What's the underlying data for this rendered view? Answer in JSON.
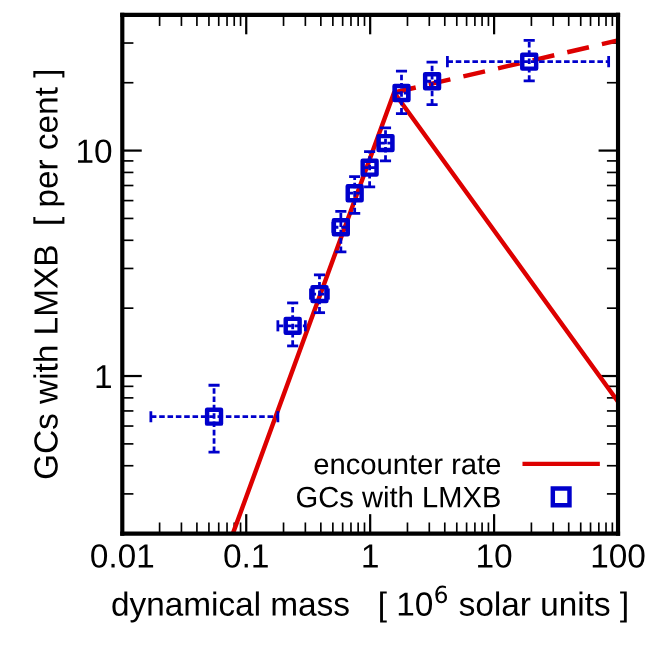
{
  "chart_data": {
    "type": "scatter",
    "xlabel": "dynamical mass   [ 10$^{6}$ solar units ]",
    "ylabel": "GCs with LMXB  [ per cent ]",
    "log": "xy",
    "xlim": [
      0.01,
      100
    ],
    "ylim": [
      0.2,
      40
    ],
    "xticks": [
      0.01,
      0.1,
      1,
      10,
      100
    ],
    "yticks": [
      1,
      10
    ],
    "legend": "bottom right",
    "grid": false,
    "series": [
      {
        "name": "encounter rate",
        "type": "line",
        "color": "#dd0000",
        "line_style": "solid",
        "marker": "none",
        "x": [
          0.078,
          1.56,
          100
        ],
        "values": [
          0.2,
          18.1,
          0.77
        ]
      },
      {
        "type": "line",
        "color": "#dd0000",
        "line_style": "dashed",
        "marker": "none",
        "x": [
          1.56,
          100
        ],
        "values": [
          18.1,
          30.8
        ]
      },
      {
        "name": "GCs with LMXB",
        "color": "#0000cc",
        "marker": "square",
        "x": [
          0.055,
          0.237,
          0.39,
          0.58,
          0.75,
          0.99,
          1.33,
          1.79,
          3.16,
          19.2
        ],
        "values": [
          0.66,
          1.67,
          2.31,
          4.57,
          6.47,
          8.4,
          10.8,
          18.0,
          20.3,
          24.8
        ],
        "errors": [
          [
            0.46,
            0.91
          ],
          [
            1.36,
            2.11
          ],
          [
            1.91,
            2.81
          ],
          [
            3.55,
            5.38
          ],
          [
            5.27,
            7.67
          ],
          [
            6.9,
            9.9
          ],
          [
            9.0,
            12.6
          ],
          [
            14.6,
            22.5
          ],
          [
            16.0,
            24.7
          ],
          [
            20.4,
            30.8
          ]
        ],
        "xerrors": [
          [
            0.017,
            0.18
          ],
          [
            0.18,
            0.3
          ],
          [
            0.33,
            0.46
          ],
          [
            0.5,
            0.67
          ],
          [
            0.66,
            0.85
          ],
          [
            0.87,
            1.12
          ],
          [
            1.18,
            1.5
          ],
          [
            1.6,
            2.0
          ],
          [
            2.8,
            3.5
          ],
          [
            4.2,
            84
          ]
        ]
      }
    ]
  }
}
